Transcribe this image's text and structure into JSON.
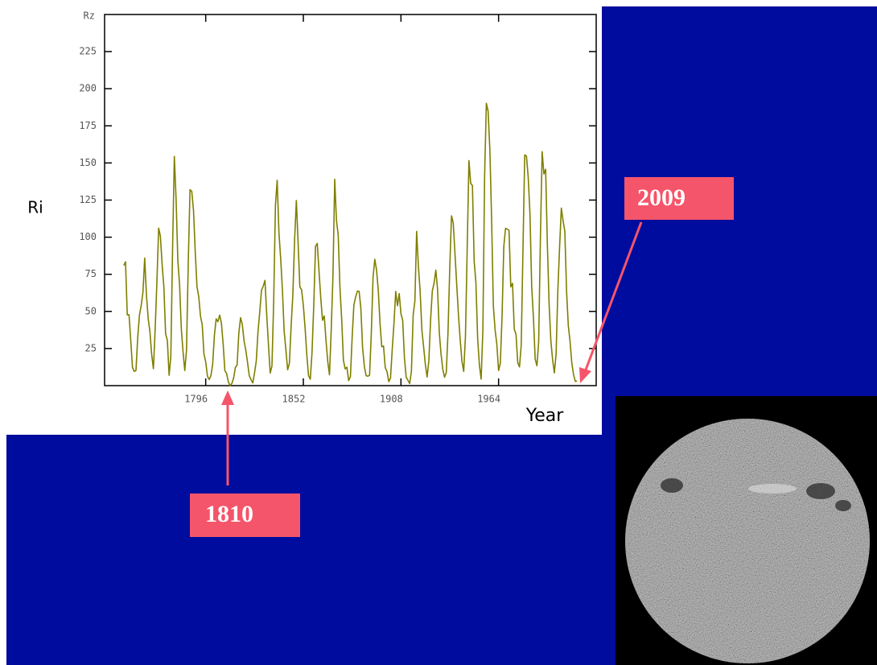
{
  "chart_data": {
    "type": "line",
    "y_unit_label": "Rz",
    "ylabel": "Ri",
    "xlabel": "Year",
    "color": "#7f7f00",
    "xlim": [
      1738,
      2020
    ],
    "ylim": [
      0,
      250
    ],
    "xticks": [
      1796,
      1852,
      1908,
      1964
    ],
    "yticks": [
      25,
      50,
      75,
      100,
      125,
      150,
      175,
      200,
      225
    ],
    "annotations": [
      "1810",
      "2009"
    ],
    "x": [
      1749,
      1750,
      1751,
      1752,
      1753,
      1754,
      1755,
      1756,
      1757,
      1758,
      1759,
      1760,
      1761,
      1762,
      1763,
      1764,
      1765,
      1766,
      1767,
      1768,
      1769,
      1770,
      1771,
      1772,
      1773,
      1774,
      1775,
      1776,
      1777,
      1778,
      1779,
      1780,
      1781,
      1782,
      1783,
      1784,
      1785,
      1786,
      1787,
      1788,
      1789,
      1790,
      1791,
      1792,
      1793,
      1794,
      1795,
      1796,
      1797,
      1798,
      1799,
      1800,
      1801,
      1802,
      1803,
      1804,
      1805,
      1806,
      1807,
      1808,
      1809,
      1810,
      1811,
      1812,
      1813,
      1814,
      1815,
      1816,
      1817,
      1818,
      1819,
      1820,
      1821,
      1822,
      1823,
      1824,
      1825,
      1826,
      1827,
      1828,
      1829,
      1830,
      1831,
      1832,
      1833,
      1834,
      1835,
      1836,
      1837,
      1838,
      1839,
      1840,
      1841,
      1842,
      1843,
      1844,
      1845,
      1846,
      1847,
      1848,
      1849,
      1850,
      1851,
      1852,
      1853,
      1854,
      1855,
      1856,
      1857,
      1858,
      1859,
      1860,
      1861,
      1862,
      1863,
      1864,
      1865,
      1866,
      1867,
      1868,
      1869,
      1870,
      1871,
      1872,
      1873,
      1874,
      1875,
      1876,
      1877,
      1878,
      1879,
      1880,
      1881,
      1882,
      1883,
      1884,
      1885,
      1886,
      1887,
      1888,
      1889,
      1890,
      1891,
      1892,
      1893,
      1894,
      1895,
      1896,
      1897,
      1898,
      1899,
      1900,
      1901,
      1902,
      1903,
      1904,
      1905,
      1906,
      1907,
      1908,
      1909,
      1910,
      1911,
      1912,
      1913,
      1914,
      1915,
      1916,
      1917,
      1918,
      1919,
      1920,
      1921,
      1922,
      1923,
      1924,
      1925,
      1926,
      1927,
      1928,
      1929,
      1930,
      1931,
      1932,
      1933,
      1934,
      1935,
      1936,
      1937,
      1938,
      1939,
      1940,
      1941,
      1942,
      1943,
      1944,
      1945,
      1946,
      1947,
      1948,
      1949,
      1950,
      1951,
      1952,
      1953,
      1954,
      1955,
      1956,
      1957,
      1958,
      1959,
      1960,
      1961,
      1962,
      1963,
      1964,
      1965,
      1966,
      1967,
      1968,
      1969,
      1970,
      1971,
      1972,
      1973,
      1974,
      1975,
      1976,
      1977,
      1978,
      1979,
      1980,
      1981,
      1982,
      1983,
      1984,
      1985,
      1986,
      1987,
      1988,
      1989,
      1990,
      1991,
      1992,
      1993,
      1994,
      1995,
      1996,
      1997,
      1998,
      1999,
      2000,
      2001,
      2002,
      2003,
      2004,
      2005,
      2006,
      2007,
      2008,
      2009
    ],
    "values": [
      80.9,
      83.4,
      47.7,
      47.8,
      30.7,
      12.2,
      9.6,
      10.2,
      32.4,
      47.6,
      54.0,
      62.9,
      85.9,
      61.2,
      45.1,
      36.4,
      20.9,
      11.4,
      37.8,
      69.8,
      106.1,
      100.8,
      81.6,
      66.5,
      34.8,
      30.6,
      7.0,
      19.8,
      92.5,
      154.4,
      125.9,
      84.8,
      68.1,
      38.5,
      22.8,
      10.2,
      24.1,
      82.9,
      132.0,
      130.9,
      118.1,
      89.9,
      66.6,
      60.0,
      46.9,
      41.0,
      21.3,
      16.0,
      6.4,
      4.1,
      6.8,
      14.5,
      34.0,
      45.0,
      43.1,
      47.5,
      42.2,
      28.1,
      10.1,
      8.1,
      2.5,
      0.0,
      1.4,
      5.0,
      12.2,
      13.9,
      35.4,
      45.8,
      41.1,
      30.1,
      23.9,
      15.6,
      6.6,
      4.0,
      1.8,
      8.5,
      16.6,
      36.3,
      49.6,
      64.2,
      67.0,
      70.9,
      47.8,
      27.5,
      8.5,
      13.2,
      56.9,
      121.5,
      138.3,
      103.2,
      85.7,
      64.6,
      36.7,
      24.2,
      10.7,
      15.0,
      40.1,
      61.5,
      98.5,
      124.7,
      96.3,
      66.6,
      64.5,
      54.1,
      39.0,
      20.6,
      6.7,
      4.3,
      22.7,
      54.8,
      93.8,
      95.8,
      77.2,
      59.1,
      44.0,
      47.0,
      30.5,
      16.3,
      7.3,
      37.6,
      74.0,
      139.0,
      111.2,
      101.6,
      66.2,
      44.7,
      17.0,
      11.3,
      12.4,
      3.4,
      6.0,
      32.3,
      54.3,
      59.7,
      63.7,
      63.5,
      52.2,
      25.4,
      13.1,
      6.8,
      6.3,
      7.1,
      35.6,
      73.0,
      85.1,
      78.0,
      64.0,
      41.8,
      26.2,
      26.7,
      12.1,
      9.5,
      2.7,
      5.0,
      24.4,
      42.0,
      63.5,
      53.8,
      62.0,
      48.5,
      43.9,
      18.6,
      5.7,
      3.6,
      1.4,
      9.6,
      47.4,
      57.1,
      103.9,
      80.6,
      63.6,
      37.6,
      26.1,
      14.2,
      5.8,
      16.7,
      44.3,
      63.9,
      69.0,
      77.8,
      64.9,
      35.7,
      21.2,
      11.1,
      5.7,
      8.7,
      36.1,
      79.7,
      114.4,
      109.6,
      88.8,
      67.8,
      47.5,
      30.6,
      16.3,
      9.6,
      33.2,
      92.6,
      151.6,
      136.3,
      134.7,
      83.9,
      69.4,
      31.5,
      13.9,
      4.4,
      38.0,
      141.7,
      190.2,
      184.8,
      159.0,
      112.3,
      53.9,
      37.6,
      27.9,
      10.2,
      15.1,
      47.0,
      93.8,
      105.9,
      105.5,
      104.5,
      66.6,
      68.9,
      38.0,
      34.5,
      15.5,
      12.6,
      27.5,
      92.5,
      155.4,
      154.6,
      140.4,
      115.9,
      66.6,
      45.9,
      17.9,
      13.4,
      29.4,
      100.2,
      157.6,
      142.6,
      145.7,
      94.3,
      54.6,
      29.9,
      17.5,
      8.6,
      21.5,
      64.3,
      93.3,
      119.6,
      111.0,
      104.0,
      63.7,
      40.4,
      29.8,
      15.2,
      7.5,
      2.9,
      3.1
    ]
  }
}
